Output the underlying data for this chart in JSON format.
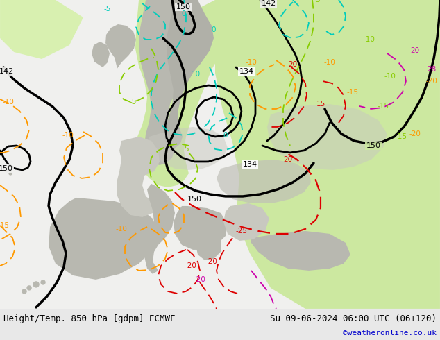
{
  "title_left": "Height/Temp. 850 hPa [gdpm] ECMWF",
  "title_right": "Su 09-06-2024 06:00 UTC (06+120)",
  "credit": "©weatheronline.co.uk",
  "bg_light": "#f0f0ee",
  "land_light_green": "#c8e8a0",
  "land_white": "#f0f0ee",
  "land_gray": "#b8b8b0",
  "sea_white": "#f0f0ee",
  "contour_black": "#000000",
  "contour_cyan": "#00ccbb",
  "contour_green": "#88cc00",
  "contour_orange": "#ff9900",
  "contour_red": "#dd0000",
  "contour_magenta": "#cc00aa",
  "bottom_bg": "#e8e8e8",
  "credit_color": "#0000cc",
  "title_fontsize": 9,
  "dpi": 100,
  "figsize": [
    6.34,
    4.9
  ]
}
